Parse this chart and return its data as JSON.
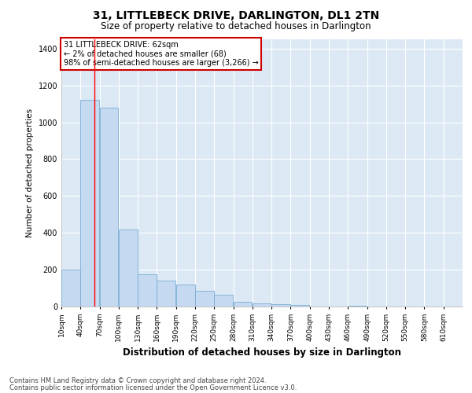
{
  "title": "31, LITTLEBECK DRIVE, DARLINGTON, DL1 2TN",
  "subtitle": "Size of property relative to detached houses in Darlington",
  "xlabel": "Distribution of detached houses by size in Darlington",
  "ylabel": "Number of detached properties",
  "annotation_line1": "31 LITTLEBECK DRIVE: 62sqm",
  "annotation_line2": "← 2% of detached houses are smaller (68)",
  "annotation_line3": "98% of semi-detached houses are larger (3,266) →",
  "footer_line1": "Contains HM Land Registry data © Crown copyright and database right 2024.",
  "footer_line2": "Contains public sector information licensed under the Open Government Licence v3.0.",
  "bar_color": "#c5d9f0",
  "bar_edge_color": "#7aadd4",
  "bg_color": "#dce9f5",
  "fig_color": "#ffffff",
  "grid_color": "#ffffff",
  "red_line_x": 62,
  "annotation_box_color": "#ffffff",
  "annotation_box_edge": "#cc0000",
  "categories": [
    "10sqm",
    "40sqm",
    "70sqm",
    "100sqm",
    "130sqm",
    "160sqm",
    "190sqm",
    "220sqm",
    "250sqm",
    "280sqm",
    "310sqm",
    "340sqm",
    "370sqm",
    "400sqm",
    "430sqm",
    "460sqm",
    "490sqm",
    "520sqm",
    "550sqm",
    "580sqm",
    "610sqm"
  ],
  "bin_edges": [
    10,
    40,
    70,
    100,
    130,
    160,
    190,
    220,
    250,
    280,
    310,
    340,
    370,
    400,
    430,
    460,
    490,
    520,
    550,
    580,
    610
  ],
  "values": [
    200,
    1120,
    1080,
    420,
    175,
    140,
    120,
    85,
    65,
    25,
    18,
    12,
    8,
    0,
    0,
    6,
    0,
    0,
    0,
    0,
    0
  ],
  "ylim": [
    0,
    1450
  ],
  "yticks": [
    0,
    200,
    400,
    600,
    800,
    1000,
    1200,
    1400
  ]
}
